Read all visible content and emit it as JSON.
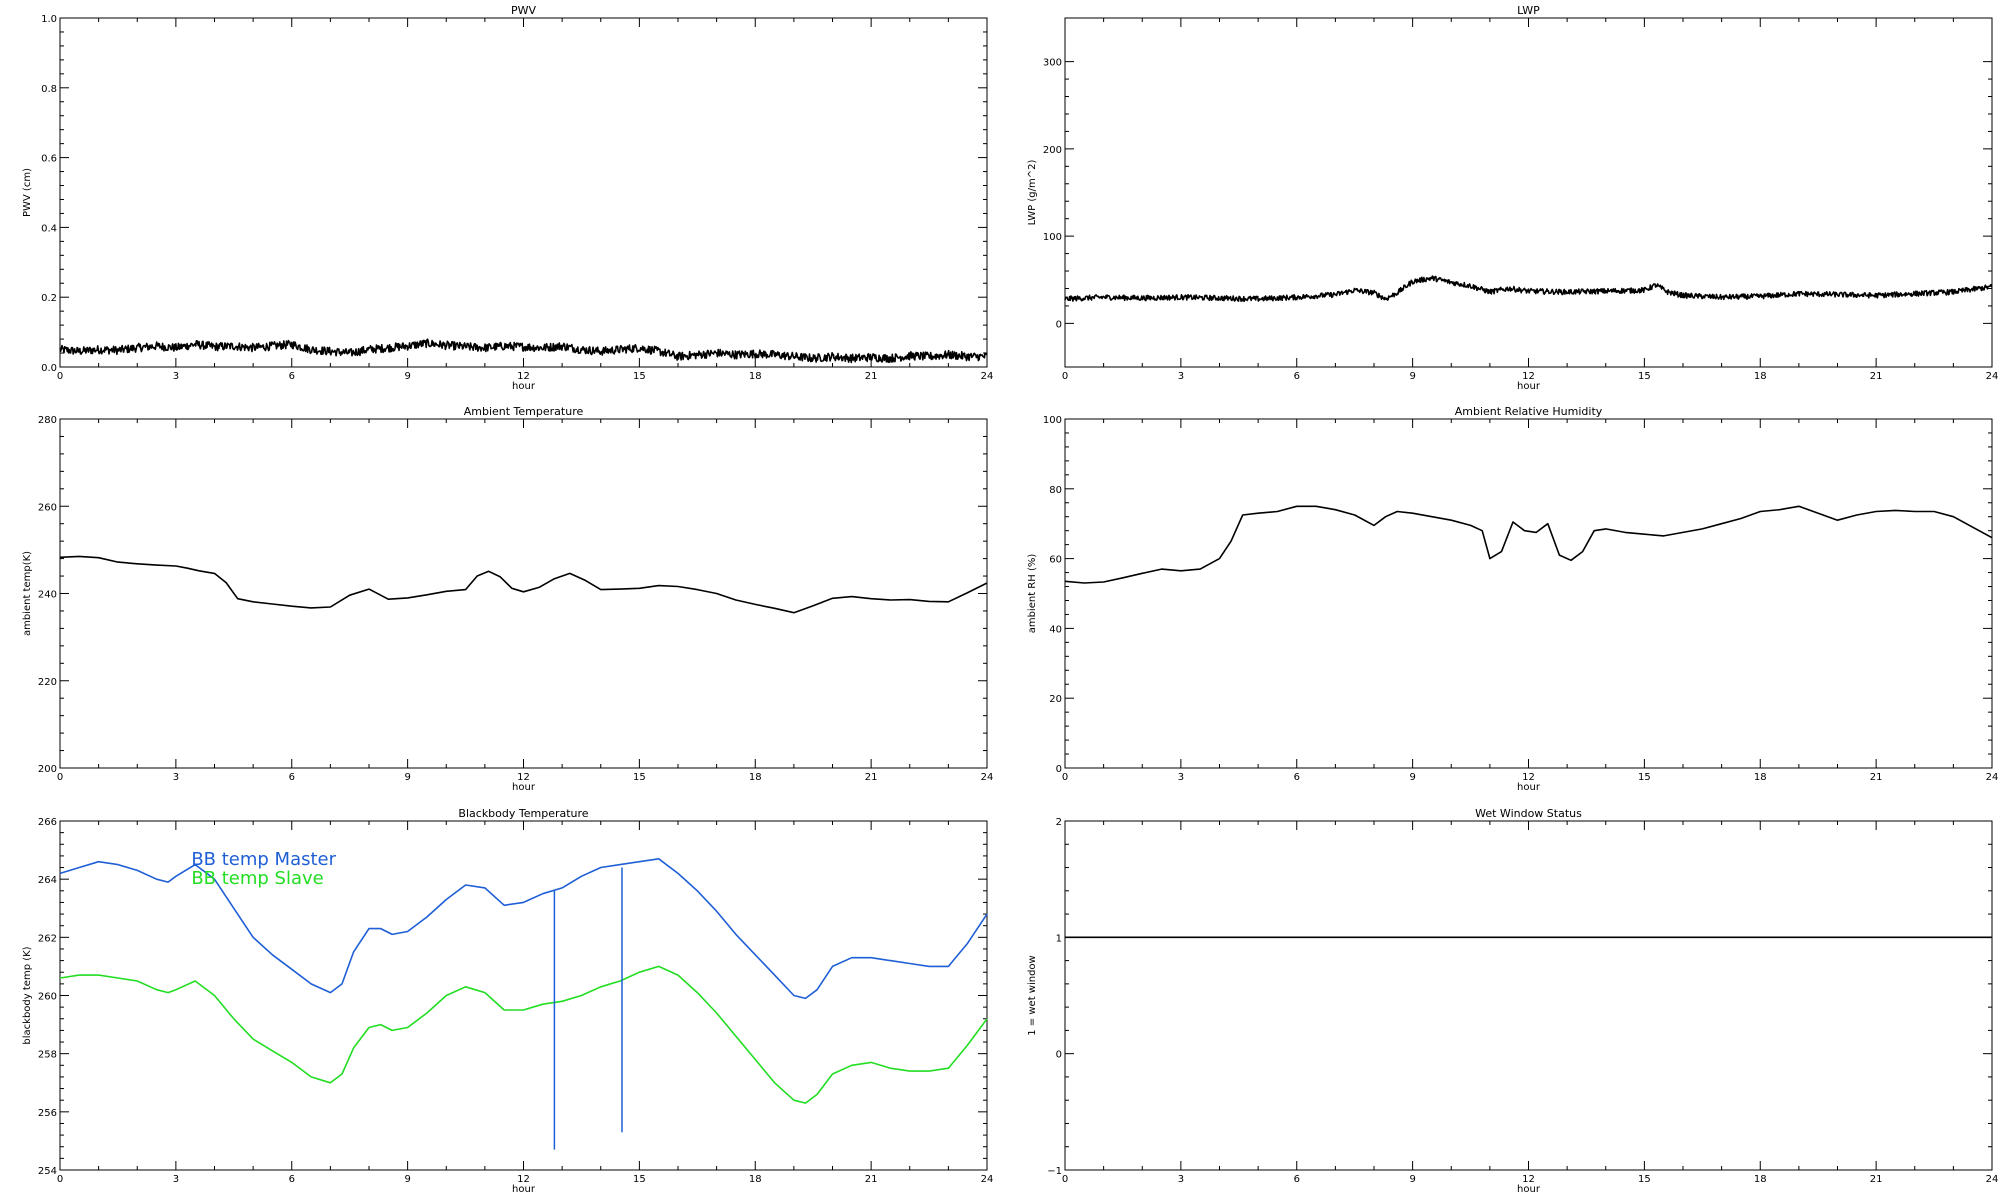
{
  "chart_data": [
    {
      "type": "line",
      "title": "PWV",
      "xlabel": "hour",
      "ylabel": "PWV (cm)",
      "xlim": [
        0,
        24
      ],
      "ylim": [
        0,
        1.0
      ],
      "xticks": [
        0,
        3,
        6,
        9,
        12,
        15,
        18,
        21,
        24
      ],
      "xtick_labels": [
        "0",
        "3",
        "6",
        "9",
        "12",
        "15",
        "18",
        "21",
        "24"
      ],
      "yticks": [
        0.0,
        0.2,
        0.4,
        0.6,
        0.8,
        1.0
      ],
      "ytick_labels": [
        "0.0",
        "0.2",
        "0.4",
        "0.6",
        "0.8",
        "1.0"
      ],
      "grid": false,
      "noise": 0.012,
      "series": [
        {
          "color": "#000000",
          "x": [
            0,
            0.5,
            1,
            1.5,
            2,
            2.5,
            3,
            3.5,
            4,
            4.5,
            5,
            5.5,
            6,
            6.5,
            7,
            7.5,
            8,
            8.5,
            9,
            9.5,
            10,
            10.5,
            11,
            11.5,
            12,
            12.5,
            13,
            13.5,
            14,
            14.5,
            15,
            15.5,
            16,
            16.5,
            17,
            17.5,
            18,
            18.5,
            19,
            19.5,
            20,
            20.5,
            21,
            21.5,
            22,
            22.5,
            23,
            23.5,
            24
          ],
          "values": [
            0.05,
            0.045,
            0.05,
            0.048,
            0.055,
            0.06,
            0.055,
            0.065,
            0.058,
            0.06,
            0.055,
            0.06,
            0.065,
            0.05,
            0.045,
            0.04,
            0.05,
            0.055,
            0.06,
            0.068,
            0.062,
            0.058,
            0.055,
            0.06,
            0.058,
            0.055,
            0.06,
            0.05,
            0.045,
            0.05,
            0.055,
            0.045,
            0.03,
            0.035,
            0.04,
            0.035,
            0.038,
            0.035,
            0.03,
            0.025,
            0.03,
            0.025,
            0.028,
            0.025,
            0.032,
            0.03,
            0.035,
            0.03,
            0.03
          ]
        }
      ]
    },
    {
      "type": "line",
      "title": "LWP",
      "xlabel": "hour",
      "ylabel": "LWP (g/m^2)",
      "xlim": [
        0,
        24
      ],
      "ylim": [
        -50,
        350
      ],
      "xticks": [
        0,
        3,
        6,
        9,
        12,
        15,
        18,
        21,
        24
      ],
      "xtick_labels": [
        "0",
        "3",
        "6",
        "9",
        "12",
        "15",
        "18",
        "21",
        "24"
      ],
      "yticks": [
        0,
        100,
        200,
        300
      ],
      "ytick_labels": [
        "0",
        "100",
        "200",
        "300"
      ],
      "grid": false,
      "noise": 3,
      "series": [
        {
          "color": "#000000",
          "x": [
            0,
            1,
            2,
            3,
            4,
            5,
            6,
            7,
            7.5,
            8,
            8.3,
            8.6,
            9,
            9.5,
            10,
            10.5,
            11,
            11.5,
            12,
            13,
            14,
            15,
            15.3,
            15.6,
            16,
            17,
            18,
            19,
            20,
            21,
            22,
            23,
            24
          ],
          "values": [
            28,
            30,
            29,
            30,
            29,
            28,
            30,
            33,
            38,
            35,
            28,
            35,
            48,
            52,
            47,
            43,
            36,
            40,
            37,
            36,
            37,
            38,
            44,
            36,
            32,
            30,
            31,
            34,
            33,
            32,
            34,
            36,
            42
          ]
        }
      ]
    },
    {
      "type": "line",
      "title": "Ambient Temperature",
      "xlabel": "hour",
      "ylabel": "ambient temp(K)",
      "xlim": [
        0,
        24
      ],
      "ylim": [
        200,
        280
      ],
      "xticks": [
        0,
        3,
        6,
        9,
        12,
        15,
        18,
        21,
        24
      ],
      "xtick_labels": [
        "0",
        "3",
        "6",
        "9",
        "12",
        "15",
        "18",
        "21",
        "24"
      ],
      "yticks": [
        200,
        220,
        240,
        260,
        280
      ],
      "ytick_labels": [
        "200",
        "220",
        "240",
        "260",
        "280"
      ],
      "grid": false,
      "noise": 0,
      "series": [
        {
          "color": "#000000",
          "x": [
            0,
            0.5,
            1,
            1.5,
            2,
            2.5,
            3,
            3.3,
            3.6,
            4,
            4.3,
            4.6,
            5,
            5.5,
            6,
            6.5,
            7,
            7.5,
            8,
            8.5,
            9,
            9.5,
            10,
            10.5,
            10.8,
            11.1,
            11.4,
            11.7,
            12,
            12.4,
            12.8,
            13.2,
            13.6,
            14,
            14.5,
            15,
            15.5,
            16,
            16.5,
            17,
            17.5,
            18,
            18.5,
            19,
            19.5,
            20,
            20.5,
            21,
            21.5,
            22,
            22.5,
            23,
            23.5,
            24
          ],
          "values": [
            248.3,
            248.5,
            248.2,
            247.2,
            246.8,
            246.5,
            246.3,
            245.8,
            245.2,
            244.6,
            242.5,
            238.8,
            238.1,
            237.6,
            237.1,
            236.7,
            236.9,
            239.6,
            241.0,
            238.7,
            239.0,
            239.7,
            240.5,
            240.9,
            244.0,
            245.1,
            243.8,
            241.2,
            240.4,
            241.4,
            243.4,
            244.6,
            243.0,
            240.9,
            241.0,
            241.2,
            241.8,
            241.6,
            240.9,
            240.0,
            238.5,
            237.5,
            236.6,
            235.6,
            237.2,
            238.9,
            239.3,
            238.8,
            238.5,
            238.6,
            238.2,
            238.1,
            240.2,
            242.4
          ]
        }
      ]
    },
    {
      "type": "line",
      "title": "Ambient Relative Humidity",
      "xlabel": "hour",
      "ylabel": "ambient RH (%)",
      "xlim": [
        0,
        24
      ],
      "ylim": [
        0,
        100
      ],
      "xticks": [
        0,
        3,
        6,
        9,
        12,
        15,
        18,
        21,
        24
      ],
      "xtick_labels": [
        "0",
        "3",
        "6",
        "9",
        "12",
        "15",
        "18",
        "21",
        "24"
      ],
      "yticks": [
        0,
        20,
        40,
        60,
        80,
        100
      ],
      "ytick_labels": [
        "0",
        "20",
        "40",
        "60",
        "80",
        "100"
      ],
      "grid": false,
      "noise": 0,
      "series": [
        {
          "color": "#000000",
          "x": [
            0,
            0.5,
            1,
            1.5,
            2,
            2.5,
            3,
            3.5,
            4,
            4.3,
            4.6,
            5,
            5.5,
            6,
            6.5,
            7,
            7.5,
            8,
            8.3,
            8.6,
            9,
            9.5,
            10,
            10.5,
            10.8,
            11,
            11.3,
            11.6,
            11.9,
            12.2,
            12.5,
            12.8,
            13.1,
            13.4,
            13.7,
            14,
            14.5,
            15,
            15.5,
            16,
            16.5,
            17,
            17.5,
            18,
            18.5,
            19,
            19.5,
            20,
            20.5,
            21,
            21.5,
            22,
            22.5,
            23,
            23.5,
            24
          ],
          "values": [
            53.5,
            53.0,
            53.3,
            54.5,
            55.8,
            57.0,
            56.5,
            57.0,
            60.0,
            65.0,
            72.5,
            73.0,
            73.5,
            75.0,
            75.0,
            74.0,
            72.5,
            69.5,
            72.0,
            73.5,
            73.0,
            72.0,
            71.0,
            69.5,
            68.0,
            60.0,
            62.0,
            70.5,
            68.0,
            67.5,
            70.0,
            61.0,
            59.5,
            62.0,
            68.0,
            68.5,
            67.5,
            67.0,
            66.5,
            67.5,
            68.5,
            70.0,
            71.5,
            73.5,
            74.0,
            75.0,
            73.0,
            71.0,
            72.5,
            73.5,
            73.8,
            73.5,
            73.5,
            72.0,
            69.0,
            66.0
          ]
        }
      ]
    },
    {
      "type": "line",
      "title": "Blackbody Temperature",
      "xlabel": "hour",
      "ylabel": "blackbody temp (K)",
      "xlim": [
        0,
        24
      ],
      "ylim": [
        254,
        266
      ],
      "xticks": [
        0,
        3,
        6,
        9,
        12,
        15,
        18,
        21,
        24
      ],
      "xtick_labels": [
        "0",
        "3",
        "6",
        "9",
        "12",
        "15",
        "18",
        "21",
        "24"
      ],
      "yticks": [
        254,
        256,
        258,
        260,
        262,
        264,
        266
      ],
      "ytick_labels": [
        "254",
        "256",
        "258",
        "260",
        "262",
        "264",
        "266"
      ],
      "grid": false,
      "noise": 0,
      "legend": "top-left",
      "series": [
        {
          "name": "BB temp Master",
          "color": "#1f5fd6",
          "x": [
            0,
            0.5,
            1,
            1.5,
            2,
            2.5,
            2.8,
            3,
            3.5,
            4,
            4.5,
            5,
            5.5,
            6,
            6.5,
            7,
            7.3,
            7.6,
            8,
            8.3,
            8.6,
            9,
            9.5,
            10,
            10.5,
            11,
            11.5,
            12,
            12.5,
            13,
            13.5,
            14,
            14.5,
            15,
            15.5,
            16,
            16.5,
            17,
            17.5,
            18,
            18.5,
            19,
            19.3,
            19.6,
            20,
            20.5,
            21,
            21.5,
            22,
            22.5,
            23,
            23.5,
            24
          ],
          "values": [
            264.2,
            264.4,
            264.6,
            264.5,
            264.3,
            264.0,
            263.9,
            264.1,
            264.5,
            264.0,
            263.0,
            262.0,
            261.4,
            260.9,
            260.4,
            260.1,
            260.4,
            261.5,
            262.3,
            262.3,
            262.1,
            262.2,
            262.7,
            263.3,
            263.8,
            263.7,
            263.1,
            263.2,
            263.5,
            263.7,
            264.1,
            264.4,
            264.5,
            264.6,
            264.7,
            264.2,
            263.6,
            262.9,
            262.1,
            261.4,
            260.7,
            260.0,
            259.9,
            260.2,
            261.0,
            261.3,
            261.3,
            261.2,
            261.1,
            261.0,
            261.0,
            261.8,
            262.8
          ]
        },
        {
          "name": "BB temp Slave",
          "color": "#22dd22",
          "x": [
            0,
            0.5,
            1,
            1.5,
            2,
            2.5,
            2.8,
            3,
            3.5,
            4,
            4.5,
            5,
            5.5,
            6,
            6.5,
            7,
            7.3,
            7.6,
            8,
            8.3,
            8.6,
            9,
            9.5,
            10,
            10.5,
            11,
            11.5,
            12,
            12.5,
            13,
            13.5,
            14,
            14.5,
            15,
            15.5,
            16,
            16.5,
            17,
            17.5,
            18,
            18.5,
            19,
            19.3,
            19.6,
            20,
            20.5,
            21,
            21.5,
            22,
            22.5,
            23,
            23.5,
            24
          ],
          "values": [
            260.6,
            260.7,
            260.7,
            260.6,
            260.5,
            260.2,
            260.1,
            260.2,
            260.5,
            260.0,
            259.2,
            258.5,
            258.1,
            257.7,
            257.2,
            257.0,
            257.3,
            258.2,
            258.9,
            259.0,
            258.8,
            258.9,
            259.4,
            260.0,
            260.3,
            260.1,
            259.5,
            259.5,
            259.7,
            259.8,
            260.0,
            260.3,
            260.5,
            260.8,
            261.0,
            260.7,
            260.1,
            259.4,
            258.6,
            257.8,
            257.0,
            256.4,
            256.3,
            256.6,
            257.3,
            257.6,
            257.7,
            257.5,
            257.4,
            257.4,
            257.5,
            258.3,
            259.2
          ]
        }
      ],
      "vlines": [
        {
          "color": "#1f5fd6",
          "x": 12.8,
          "from": 254.7,
          "to": 263.6
        },
        {
          "color": "#1f5fd6",
          "x": 14.55,
          "from": 255.3,
          "to": 264.4
        }
      ]
    },
    {
      "type": "line",
      "title": "Wet Window Status",
      "xlabel": "hour",
      "ylabel": "1 = wet window",
      "xlim": [
        0,
        24
      ],
      "ylim": [
        -1,
        2
      ],
      "xticks": [
        0,
        3,
        6,
        9,
        12,
        15,
        18,
        21,
        24
      ],
      "xtick_labels": [
        "0",
        "3",
        "6",
        "9",
        "12",
        "15",
        "18",
        "21",
        "24"
      ],
      "yticks": [
        -1,
        0,
        1,
        2
      ],
      "ytick_labels": [
        "−1",
        "0",
        "1",
        "2"
      ],
      "grid": false,
      "noise": 0,
      "series": [
        {
          "color": "#000000",
          "x": [
            0,
            24
          ],
          "values": [
            1,
            1
          ]
        }
      ]
    }
  ]
}
